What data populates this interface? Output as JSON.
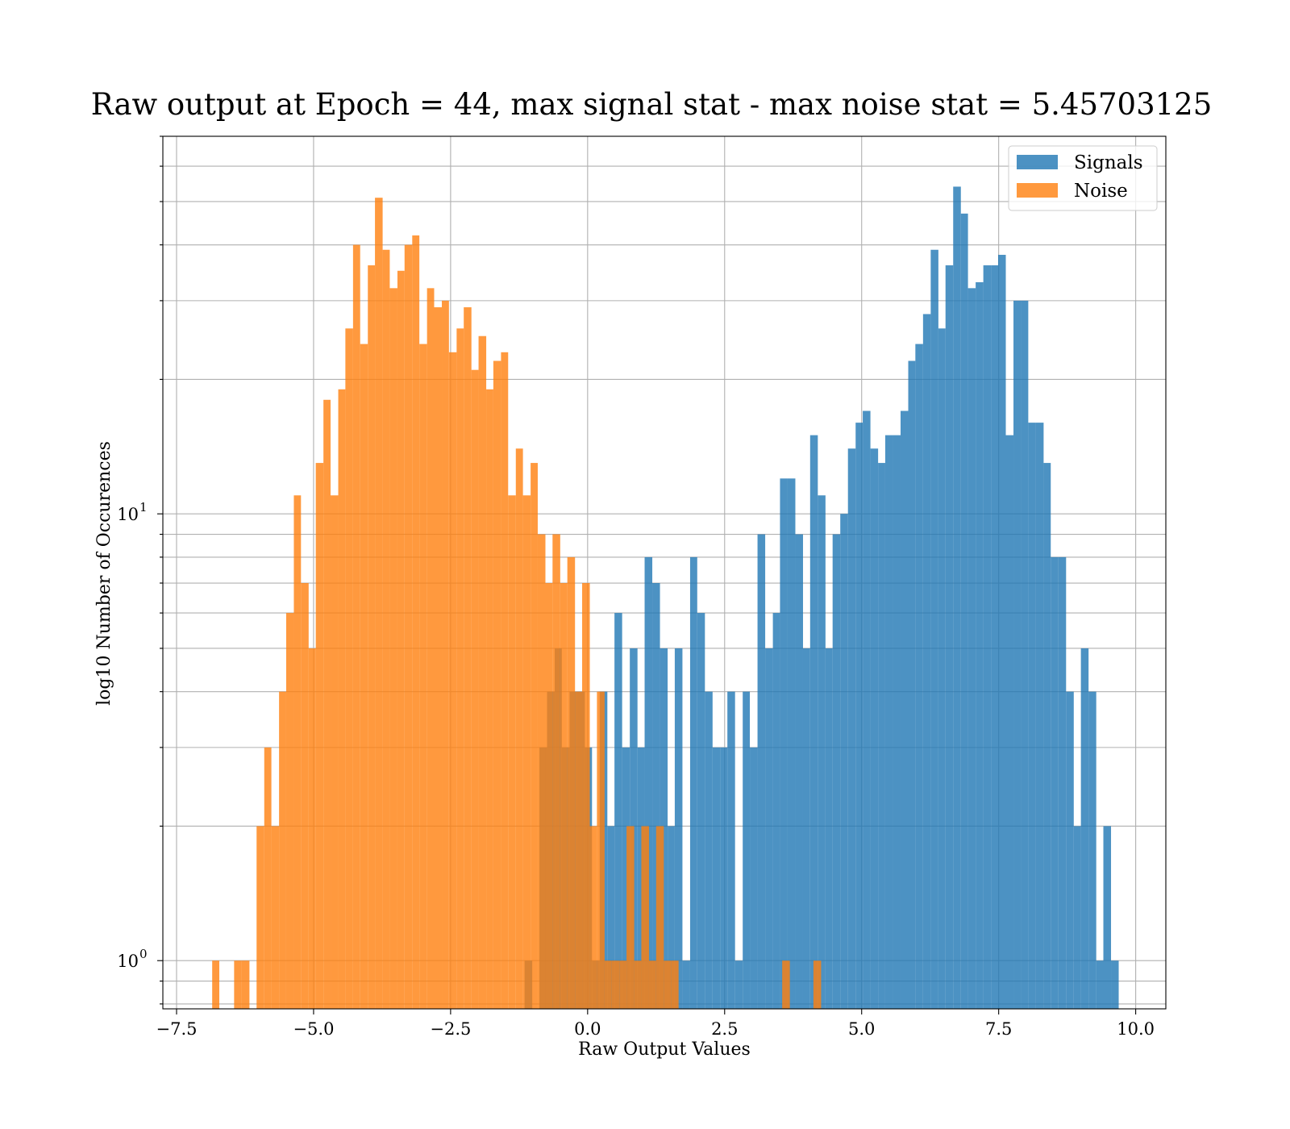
{
  "chart_data": {
    "type": "bar",
    "title": "Raw output at Epoch = 44, max signal stat - max noise stat = 5.45703125",
    "xlabel": "Raw Output Values",
    "ylabel": "log10 Number of Occurences",
    "yscale": "log",
    "xlim": [
      -7.75,
      10.55
    ],
    "ylim": [
      0.78,
      70
    ],
    "grid": true,
    "legend_position": "top-right",
    "x_ticks": [
      -7.5,
      -5.0,
      -2.5,
      0.0,
      2.5,
      5.0,
      7.5,
      10.0
    ],
    "x_tick_labels": [
      "−7.5",
      "−5.0",
      "−2.5",
      "0.0",
      "2.5",
      "5.0",
      "7.5",
      "10.0"
    ],
    "y_ticks": [
      {
        "value": 1,
        "base": "10",
        "exp": "0"
      },
      {
        "value": 10,
        "base": "10",
        "exp": "1"
      }
    ],
    "series": [
      {
        "name": "Signals",
        "color": "#1f77b4",
        "opacity": 0.8,
        "bins": [
          [
            -1.15,
            -1.01,
            1
          ],
          [
            -0.88,
            -0.74,
            3
          ],
          [
            -0.74,
            -0.6,
            4
          ],
          [
            -0.6,
            -0.47,
            5
          ],
          [
            -0.47,
            -0.33,
            3
          ],
          [
            -0.33,
            -0.19,
            4
          ],
          [
            -0.19,
            -0.05,
            4
          ],
          [
            -0.05,
            0.08,
            3
          ],
          [
            0.08,
            0.22,
            1
          ],
          [
            0.22,
            0.36,
            4
          ],
          [
            0.36,
            0.49,
            2
          ],
          [
            0.49,
            0.63,
            6
          ],
          [
            0.63,
            0.77,
            3
          ],
          [
            0.77,
            0.91,
            5
          ],
          [
            0.91,
            1.04,
            3
          ],
          [
            1.04,
            1.18,
            8
          ],
          [
            1.18,
            1.32,
            7
          ],
          [
            1.32,
            1.46,
            5
          ],
          [
            1.46,
            1.59,
            2
          ],
          [
            1.59,
            1.73,
            5
          ],
          [
            1.73,
            1.87,
            1
          ],
          [
            1.87,
            2.0,
            8
          ],
          [
            2.0,
            2.14,
            6
          ],
          [
            2.14,
            2.28,
            4
          ],
          [
            2.28,
            2.42,
            3
          ],
          [
            2.42,
            2.55,
            3
          ],
          [
            2.55,
            2.69,
            4
          ],
          [
            2.69,
            2.83,
            1
          ],
          [
            2.83,
            2.96,
            4
          ],
          [
            2.96,
            3.1,
            3
          ],
          [
            3.1,
            3.24,
            9
          ],
          [
            3.24,
            3.38,
            5
          ],
          [
            3.38,
            3.51,
            6
          ],
          [
            3.51,
            3.65,
            12
          ],
          [
            3.65,
            3.79,
            12
          ],
          [
            3.79,
            3.93,
            9
          ],
          [
            3.93,
            4.06,
            5
          ],
          [
            4.06,
            4.2,
            15
          ],
          [
            4.2,
            4.34,
            11
          ],
          [
            4.34,
            4.47,
            5
          ],
          [
            4.47,
            4.61,
            9
          ],
          [
            4.61,
            4.75,
            10
          ],
          [
            4.75,
            4.89,
            14
          ],
          [
            4.89,
            5.02,
            16
          ],
          [
            5.02,
            5.16,
            17
          ],
          [
            5.16,
            5.3,
            14
          ],
          [
            5.3,
            5.43,
            13
          ],
          [
            5.43,
            5.57,
            15
          ],
          [
            5.57,
            5.71,
            15
          ],
          [
            5.71,
            5.85,
            17
          ],
          [
            5.85,
            5.98,
            22
          ],
          [
            5.98,
            6.12,
            24
          ],
          [
            6.12,
            6.26,
            28
          ],
          [
            6.26,
            6.4,
            39
          ],
          [
            6.4,
            6.53,
            26
          ],
          [
            6.53,
            6.67,
            36
          ],
          [
            6.67,
            6.81,
            54
          ],
          [
            6.81,
            6.94,
            47
          ],
          [
            6.94,
            7.08,
            32
          ],
          [
            7.08,
            7.22,
            33
          ],
          [
            7.22,
            7.36,
            36
          ],
          [
            7.36,
            7.49,
            36
          ],
          [
            7.49,
            7.63,
            38
          ],
          [
            7.63,
            7.77,
            15
          ],
          [
            7.77,
            7.91,
            30
          ],
          [
            7.91,
            8.04,
            30
          ],
          [
            8.04,
            8.18,
            16
          ],
          [
            8.18,
            8.32,
            16
          ],
          [
            8.32,
            8.45,
            13
          ],
          [
            8.45,
            8.59,
            8
          ],
          [
            8.59,
            8.73,
            8
          ],
          [
            8.73,
            8.87,
            4
          ],
          [
            8.87,
            9.0,
            2
          ],
          [
            9.0,
            9.14,
            5
          ],
          [
            9.14,
            9.28,
            4
          ],
          [
            9.28,
            9.41,
            1
          ],
          [
            9.41,
            9.55,
            2
          ],
          [
            9.55,
            9.69,
            1
          ]
        ]
      },
      {
        "name": "Noise",
        "color": "#ff7f0e",
        "opacity": 0.8,
        "bins": [
          [
            -6.85,
            -6.72,
            1
          ],
          [
            -6.45,
            -6.31,
            1
          ],
          [
            -6.31,
            -6.17,
            1
          ],
          [
            -6.17,
            -6.04,
            0
          ],
          [
            -6.04,
            -5.9,
            2
          ],
          [
            -5.9,
            -5.77,
            3
          ],
          [
            -5.77,
            -5.63,
            2
          ],
          [
            -5.63,
            -5.5,
            4
          ],
          [
            -5.5,
            -5.36,
            6
          ],
          [
            -5.36,
            -5.23,
            11
          ],
          [
            -5.23,
            -5.09,
            7
          ],
          [
            -5.09,
            -4.96,
            5
          ],
          [
            -4.96,
            -4.82,
            13
          ],
          [
            -4.82,
            -4.69,
            18
          ],
          [
            -4.69,
            -4.55,
            11
          ],
          [
            -4.55,
            -4.42,
            19
          ],
          [
            -4.42,
            -4.28,
            26
          ],
          [
            -4.28,
            -4.15,
            40
          ],
          [
            -4.15,
            -4.01,
            24
          ],
          [
            -4.01,
            -3.88,
            36
          ],
          [
            -3.88,
            -3.74,
            51
          ],
          [
            -3.74,
            -3.61,
            39
          ],
          [
            -3.61,
            -3.47,
            32
          ],
          [
            -3.47,
            -3.34,
            35
          ],
          [
            -3.34,
            -3.2,
            40
          ],
          [
            -3.2,
            -3.07,
            42
          ],
          [
            -3.07,
            -2.93,
            24
          ],
          [
            -2.93,
            -2.8,
            32
          ],
          [
            -2.8,
            -2.66,
            29
          ],
          [
            -2.66,
            -2.53,
            30
          ],
          [
            -2.53,
            -2.39,
            23
          ],
          [
            -2.39,
            -2.26,
            26
          ],
          [
            -2.26,
            -2.12,
            29
          ],
          [
            -2.12,
            -1.99,
            21
          ],
          [
            -1.99,
            -1.85,
            25
          ],
          [
            -1.85,
            -1.72,
            19
          ],
          [
            -1.72,
            -1.58,
            22
          ],
          [
            -1.58,
            -1.45,
            23
          ],
          [
            -1.45,
            -1.31,
            11
          ],
          [
            -1.31,
            -1.18,
            14
          ],
          [
            -1.18,
            -1.04,
            11
          ],
          [
            -1.04,
            -0.91,
            13
          ],
          [
            -0.91,
            -0.77,
            9
          ],
          [
            -0.77,
            -0.64,
            7
          ],
          [
            -0.64,
            -0.5,
            9
          ],
          [
            -0.5,
            -0.37,
            7
          ],
          [
            -0.37,
            -0.23,
            8
          ],
          [
            -0.23,
            -0.1,
            4
          ],
          [
            -0.1,
            0.04,
            7
          ],
          [
            0.04,
            0.17,
            2
          ],
          [
            0.17,
            0.31,
            4
          ],
          [
            0.31,
            0.44,
            1
          ],
          [
            0.44,
            0.58,
            1
          ],
          [
            0.58,
            0.71,
            1
          ],
          [
            0.71,
            0.85,
            2
          ],
          [
            0.85,
            0.98,
            1
          ],
          [
            0.98,
            1.12,
            2
          ],
          [
            1.12,
            1.25,
            1
          ],
          [
            1.25,
            1.39,
            2
          ],
          [
            1.39,
            1.52,
            1
          ],
          [
            1.52,
            1.66,
            1
          ],
          [
            3.55,
            3.69,
            1
          ],
          [
            4.12,
            4.26,
            1
          ]
        ]
      }
    ]
  }
}
